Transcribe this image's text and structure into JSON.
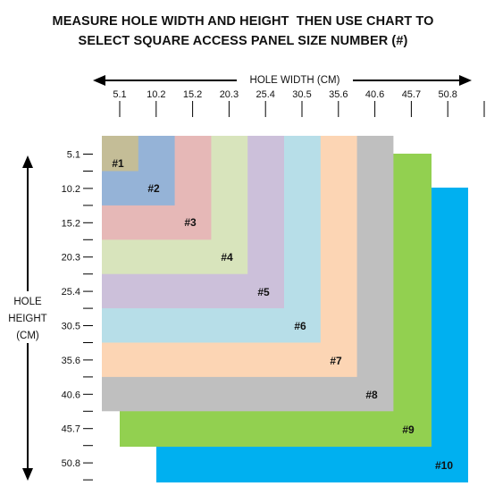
{
  "title": {
    "line1": "MEASURE HOLE WIDTH AND HEIGHT  THEN USE CHART TO",
    "line2": "SELECT SQUARE ACCESS PANEL SIZE NUMBER (#)"
  },
  "axes": {
    "width_label": "HOLE WIDTH (CM)",
    "height_label_lines": [
      "HOLE",
      "HEIGHT",
      "(CM)"
    ]
  },
  "width_ticks": [
    "5.1",
    "10.2",
    "15.2",
    "20.3",
    "25.4",
    "30.5",
    "35.6",
    "40.6",
    "45.7",
    "50.8"
  ],
  "height_ticks": [
    "5.1",
    "10.2",
    "15.2",
    "20.3",
    "25.4",
    "30.5",
    "35.6",
    "40.6",
    "45.7",
    "50.8"
  ],
  "panels": [
    {
      "label": "#1",
      "max_width_cm": 5.1,
      "max_height_cm": 5.1,
      "color": "#c4bd97"
    },
    {
      "label": "#2",
      "max_width_cm": 10.2,
      "max_height_cm": 10.2,
      "color": "#95b3d7"
    },
    {
      "label": "#3",
      "max_width_cm": 15.2,
      "max_height_cm": 15.2,
      "color": "#e6b8b7"
    },
    {
      "label": "#4",
      "max_width_cm": 20.3,
      "max_height_cm": 20.3,
      "color": "#d8e4bc"
    },
    {
      "label": "#5",
      "max_width_cm": 25.4,
      "max_height_cm": 25.4,
      "color": "#ccc0da"
    },
    {
      "label": "#6",
      "max_width_cm": 30.5,
      "max_height_cm": 30.5,
      "color": "#b7dee8"
    },
    {
      "label": "#7",
      "max_width_cm": 35.6,
      "max_height_cm": 35.6,
      "color": "#fcd5b4"
    },
    {
      "label": "#8",
      "max_width_cm": 40.6,
      "max_height_cm": 40.6,
      "color": "#bfbfbf"
    },
    {
      "label": "#9",
      "max_width_cm": 45.7,
      "max_height_cm": 45.7,
      "color": "#92d050"
    },
    {
      "label": "#10",
      "max_width_cm": 50.8,
      "max_height_cm": 50.8,
      "color": "#00b0f0"
    }
  ]
}
